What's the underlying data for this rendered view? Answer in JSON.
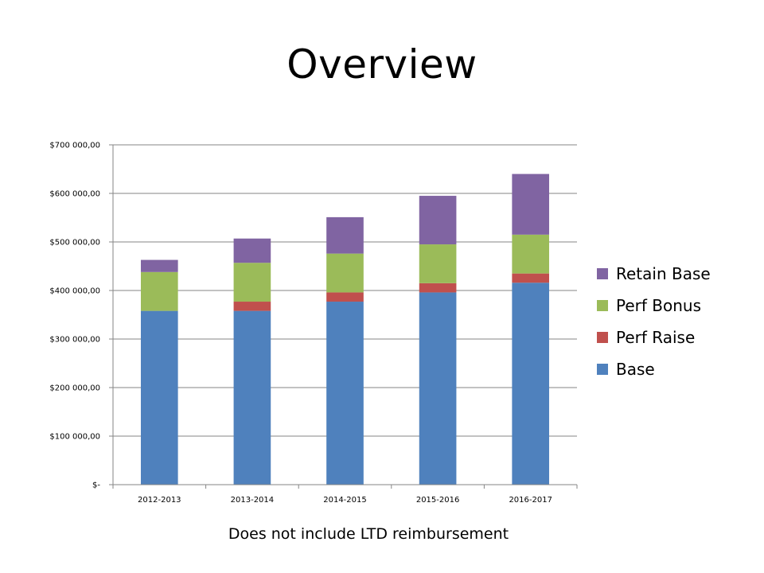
{
  "slide": {
    "title": "Overview",
    "footnote": "Does not include LTD reimbursement"
  },
  "chart_data": {
    "type": "bar",
    "stacked": true,
    "title": "",
    "xlabel": "",
    "ylabel": "",
    "categories": [
      "2012-2013",
      "2013-2014",
      "2014-2015",
      "2015-2016",
      "2016-2017"
    ],
    "series": [
      {
        "name": "Base",
        "color": "#4F81BD",
        "values": [
          358000,
          358000,
          377000,
          396000,
          416000
        ]
      },
      {
        "name": "Perf Raise",
        "color": "#C0504D",
        "values": [
          0,
          19000,
          19000,
          19000,
          19000
        ]
      },
      {
        "name": "Perf Bonus",
        "color": "#9BBB59",
        "values": [
          80000,
          80000,
          80000,
          80000,
          80000
        ]
      },
      {
        "name": "Retain Base",
        "color": "#8064A2",
        "values": [
          25000,
          50000,
          75000,
          100000,
          125000
        ]
      }
    ],
    "ylim": [
      0,
      700000
    ],
    "y_ticks": [
      {
        "value": 0,
        "label": "$-"
      },
      {
        "value": 100000,
        "label": "$100 000,00"
      },
      {
        "value": 200000,
        "label": "$200 000,00"
      },
      {
        "value": 300000,
        "label": "$300 000,00"
      },
      {
        "value": 400000,
        "label": "$400 000,00"
      },
      {
        "value": 500000,
        "label": "$500 000,00"
      },
      {
        "value": 600000,
        "label": "$600 000,00"
      },
      {
        "value": 700000,
        "label": "$700 000,00"
      }
    ],
    "grid": true,
    "legend_position": "right",
    "legend_order": [
      "Retain Base",
      "Perf Bonus",
      "Perf Raise",
      "Base"
    ]
  }
}
